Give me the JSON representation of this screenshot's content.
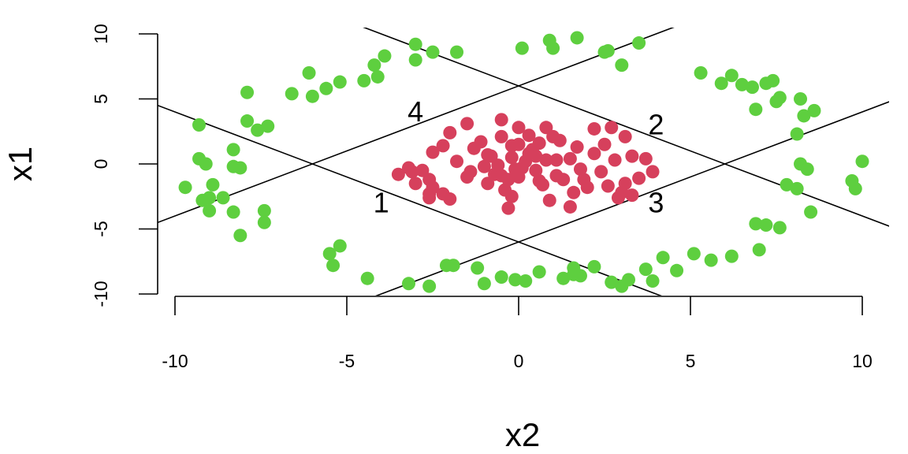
{
  "chart_data": {
    "type": "scatter",
    "xlabel": "x2",
    "ylabel": "x1",
    "xlim": [
      -10,
      10
    ],
    "ylim": [
      -10,
      10
    ],
    "x_ticks": [
      -10,
      -5,
      0,
      5,
      10
    ],
    "y_ticks": [
      -10,
      -5,
      0,
      5,
      10
    ],
    "x_tick_labels": [
      "-10",
      "-5",
      "0",
      "5",
      "10"
    ],
    "y_tick_labels": [
      "-10",
      "-5",
      "0",
      "5",
      "10"
    ],
    "grid": false,
    "colors": {
      "inner": "#d6405c",
      "outer": "#5ecf3f"
    },
    "lines": [
      {
        "label": "1",
        "intercept": -6,
        "slope": -1,
        "label_at": [
          -4,
          -3
        ]
      },
      {
        "label": "2",
        "intercept": 6,
        "slope": -1,
        "label_at": [
          4,
          3
        ]
      },
      {
        "label": "3",
        "intercept": -6,
        "slope": 1,
        "label_at": [
          4,
          -3
        ]
      },
      {
        "label": "4",
        "intercept": 6,
        "slope": 1,
        "label_at": [
          -3,
          4
        ]
      }
    ],
    "series": [
      {
        "color": "#d6405c",
        "points": [
          [
            -3.5,
            -0.8
          ],
          [
            -3.2,
            -0.3
          ],
          [
            -3,
            -1.5
          ],
          [
            -2.8,
            -0.5
          ],
          [
            -2.6,
            -1.2
          ],
          [
            -2.5,
            -1.8
          ],
          [
            -2.2,
            -2.3
          ],
          [
            -2.6,
            -2.6
          ],
          [
            -2.5,
            0.9
          ],
          [
            -2.2,
            1.4
          ],
          [
            -2,
            2.4
          ],
          [
            -2,
            -2.7
          ],
          [
            -1.5,
            3.1
          ],
          [
            -1.4,
            -0.6
          ],
          [
            -1.3,
            1.2
          ],
          [
            -1.1,
            1.7
          ],
          [
            -1,
            -0.2
          ],
          [
            -0.9,
            -1.5
          ],
          [
            -0.8,
            0.6
          ],
          [
            -0.7,
            -0.8
          ],
          [
            -0.6,
            -0.1
          ],
          [
            -0.5,
            -0.9
          ],
          [
            -0.4,
            -2
          ],
          [
            -0.3,
            -1.2
          ],
          [
            -0.2,
            -2.5
          ],
          [
            -0.2,
            0.5
          ],
          [
            -0.1,
            -0.4
          ],
          [
            0,
            -1
          ],
          [
            0,
            1.5
          ],
          [
            0.1,
            -0.3
          ],
          [
            0.2,
            0.2
          ],
          [
            0.3,
            0.8
          ],
          [
            0.4,
            1.1
          ],
          [
            0.5,
            -0.5
          ],
          [
            0.6,
            1.6
          ],
          [
            0.7,
            -1.6
          ],
          [
            0.8,
            0.3
          ],
          [
            0.9,
            -2.8
          ],
          [
            1,
            2.1
          ],
          [
            1.1,
            -0.9
          ],
          [
            1.2,
            1.8
          ],
          [
            1.3,
            -1.2
          ],
          [
            1.5,
            0.4
          ],
          [
            1.6,
            -2.2
          ],
          [
            1.7,
            1.3
          ],
          [
            1.8,
            -0.4
          ],
          [
            2,
            -1.8
          ],
          [
            2.2,
            0.8
          ],
          [
            2.4,
            -0.6
          ],
          [
            2.5,
            1.5
          ],
          [
            2.6,
            -1.7
          ],
          [
            2.8,
            0.3
          ],
          [
            3,
            -2.2
          ],
          [
            3.1,
            -1.5
          ],
          [
            3.3,
            0.6
          ],
          [
            3.5,
            -1.1
          ],
          [
            3.7,
            0.4
          ],
          [
            3.9,
            -0.6
          ],
          [
            -1.8,
            0.2
          ],
          [
            -1.5,
            -1
          ],
          [
            -0.5,
            3.4
          ],
          [
            0,
            2.8
          ],
          [
            0.3,
            2.2
          ],
          [
            0.8,
            2.8
          ],
          [
            1.5,
            -3.3
          ],
          [
            2.2,
            2.7
          ],
          [
            2.7,
            2.8
          ],
          [
            3.1,
            2.1
          ],
          [
            -0.3,
            -3.4
          ],
          [
            2.9,
            -2.6
          ],
          [
            3.3,
            -2.4
          ],
          [
            -3.1,
            -0.6
          ],
          [
            -2.6,
            -2.3
          ],
          [
            -0.9,
            0.7
          ],
          [
            -0.2,
            1.4
          ],
          [
            0.5,
            0.6
          ],
          [
            1.1,
            0.3
          ],
          [
            1.9,
            -1.2
          ],
          [
            0.6,
            -1.3
          ],
          [
            -0.5,
            2.1
          ]
        ]
      },
      {
        "color": "#5ecf3f",
        "points": [
          [
            -9.7,
            -1.8
          ],
          [
            -9.3,
            0.4
          ],
          [
            -9.1,
            0
          ],
          [
            -9,
            -2.6
          ],
          [
            -8.9,
            -1.6
          ],
          [
            -9,
            -3.6
          ],
          [
            -8.6,
            -2.6
          ],
          [
            -8.3,
            1.1
          ],
          [
            -8.3,
            -0.2
          ],
          [
            -8.3,
            -3.7
          ],
          [
            -8.1,
            -5.5
          ],
          [
            -7.9,
            3.3
          ],
          [
            -7.6,
            2.6
          ],
          [
            -7.3,
            2.9
          ],
          [
            -7.4,
            -3.6
          ],
          [
            -7.4,
            -4.5
          ],
          [
            -7.9,
            5.5
          ],
          [
            -6.6,
            5.4
          ],
          [
            -6,
            5.2
          ],
          [
            -6.1,
            7
          ],
          [
            -5.6,
            5.8
          ],
          [
            -5.2,
            6.3
          ],
          [
            -4.5,
            6.4
          ],
          [
            -4.2,
            7.6
          ],
          [
            -3.9,
            8.3
          ],
          [
            -4.1,
            6.7
          ],
          [
            -3,
            9.2
          ],
          [
            -3,
            8
          ],
          [
            -2.5,
            8.6
          ],
          [
            -1.8,
            8.6
          ],
          [
            -9.3,
            3
          ],
          [
            -8.1,
            -0.3
          ],
          [
            0.1,
            8.9
          ],
          [
            0.9,
            9.5
          ],
          [
            1,
            8.9
          ],
          [
            1.7,
            9.7
          ],
          [
            2.5,
            8.6
          ],
          [
            2.6,
            8.7
          ],
          [
            3,
            7.6
          ],
          [
            3.5,
            9.3
          ],
          [
            5.3,
            7
          ],
          [
            5.9,
            6.2
          ],
          [
            6.2,
            6.8
          ],
          [
            6.5,
            6.1
          ],
          [
            6.8,
            5.9
          ],
          [
            7.2,
            6.2
          ],
          [
            7.4,
            6.4
          ],
          [
            7.5,
            4.8
          ],
          [
            7.6,
            5.1
          ],
          [
            8.2,
            5
          ],
          [
            8.3,
            3.7
          ],
          [
            8.6,
            4.1
          ],
          [
            8.1,
            2.3
          ],
          [
            8.2,
            0
          ],
          [
            8.4,
            -0.4
          ],
          [
            7.8,
            -1.6
          ],
          [
            8.1,
            -1.9
          ],
          [
            8.5,
            -3.7
          ],
          [
            9.7,
            -1.3
          ],
          [
            9.8,
            -1.9
          ],
          [
            10,
            0.2
          ],
          [
            6.9,
            -4.6
          ],
          [
            7.2,
            -4.7
          ],
          [
            7.6,
            -4.9
          ],
          [
            7,
            -6.6
          ],
          [
            6.2,
            -7.1
          ],
          [
            5.6,
            -7.4
          ],
          [
            5.1,
            -6.9
          ],
          [
            4.6,
            -8.2
          ],
          [
            4.2,
            -7.2
          ],
          [
            3.7,
            -8.1
          ],
          [
            3.2,
            -8.9
          ],
          [
            3,
            -9.4
          ],
          [
            2.7,
            -9.1
          ],
          [
            1.8,
            -8.6
          ],
          [
            1.6,
            -8
          ],
          [
            1.3,
            -8.8
          ],
          [
            0.6,
            -8.3
          ],
          [
            0.2,
            -9
          ],
          [
            -0.1,
            -8.9
          ],
          [
            -0.5,
            -8.7
          ],
          [
            -1,
            -9.2
          ],
          [
            -1.2,
            -8
          ],
          [
            -1.9,
            -7.8
          ],
          [
            -2.1,
            -7.8
          ],
          [
            -2.6,
            -9.4
          ],
          [
            -3.2,
            -9.2
          ],
          [
            -4.4,
            -8.8
          ],
          [
            -5.5,
            -6.9
          ],
          [
            -5.4,
            -7.8
          ],
          [
            -5.2,
            -6.3
          ],
          [
            1.6,
            -8.5
          ],
          [
            2.2,
            -7.9
          ],
          [
            3.9,
            -9
          ],
          [
            -9.2,
            -2.8
          ],
          [
            6.9,
            4.2
          ]
        ]
      }
    ]
  }
}
